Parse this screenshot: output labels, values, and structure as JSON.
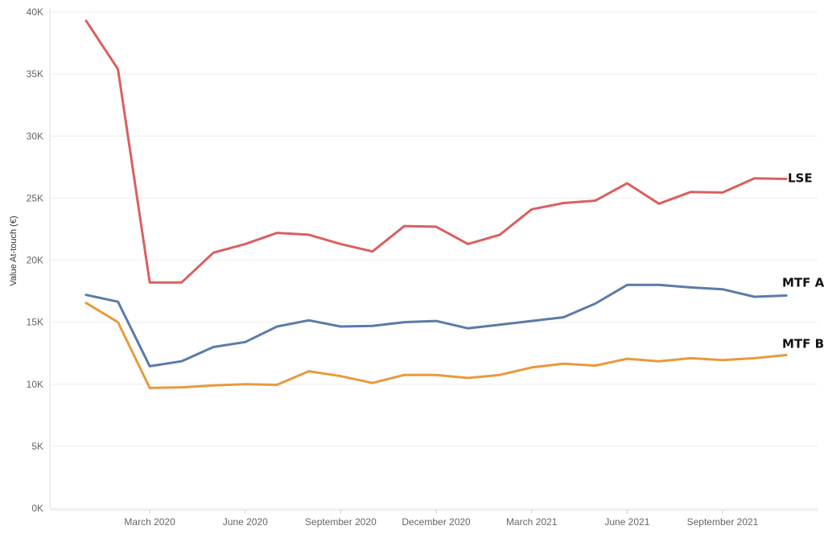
{
  "chart_data": {
    "type": "line",
    "title": "",
    "xlabel": "",
    "ylabel": "Value At-touch (€)",
    "ylim": [
      0,
      40000
    ],
    "grid": true,
    "legend": "inline-right",
    "y_ticks": [
      "0K",
      "5K",
      "10K",
      "15K",
      "20K",
      "25K",
      "30K",
      "35K",
      "40K"
    ],
    "y_tick_values": [
      0,
      5000,
      10000,
      15000,
      20000,
      25000,
      30000,
      35000,
      40000
    ],
    "x_tick_labels": [
      "March 2020",
      "June 2020",
      "September 2020",
      "December 2020",
      "March 2021",
      "June 2021",
      "September 2021"
    ],
    "x_tick_dates": [
      "2020-03",
      "2020-06",
      "2020-09",
      "2020-12",
      "2021-03",
      "2021-06",
      "2021-09"
    ],
    "x": [
      "2020-01",
      "2020-02",
      "2020-03",
      "2020-04",
      "2020-05",
      "2020-06",
      "2020-07",
      "2020-08",
      "2020-09",
      "2020-10",
      "2020-11",
      "2020-12",
      "2021-01",
      "2021-02",
      "2021-03",
      "2021-04",
      "2021-05",
      "2021-06",
      "2021-07",
      "2021-08",
      "2021-09",
      "2021-10",
      "2021-11"
    ],
    "series": [
      {
        "name": "LSE",
        "color": "#d9605f",
        "values": [
          39300,
          35400,
          18200,
          18200,
          20600,
          21300,
          22200,
          22050,
          21300,
          20700,
          22750,
          22700,
          21300,
          22050,
          24100,
          24600,
          24800,
          26200,
          24550,
          25500,
          25450,
          26600,
          26550
        ]
      },
      {
        "name": "MTF A",
        "color": "#5b7ba8",
        "values": [
          17200,
          16650,
          11450,
          11850,
          13000,
          13400,
          14650,
          15150,
          14650,
          14700,
          15000,
          15100,
          14500,
          14800,
          15100,
          15400,
          16500,
          18000,
          18000,
          17800,
          17650,
          17050,
          17150
        ]
      },
      {
        "name": "MTF B",
        "color": "#e89a3c",
        "values": [
          16550,
          15000,
          9700,
          9750,
          9900,
          10000,
          9950,
          11050,
          10650,
          10100,
          10750,
          10750,
          10500,
          10750,
          11350,
          11650,
          11500,
          12050,
          11850,
          12100,
          11950,
          12100,
          12350
        ]
      }
    ]
  }
}
